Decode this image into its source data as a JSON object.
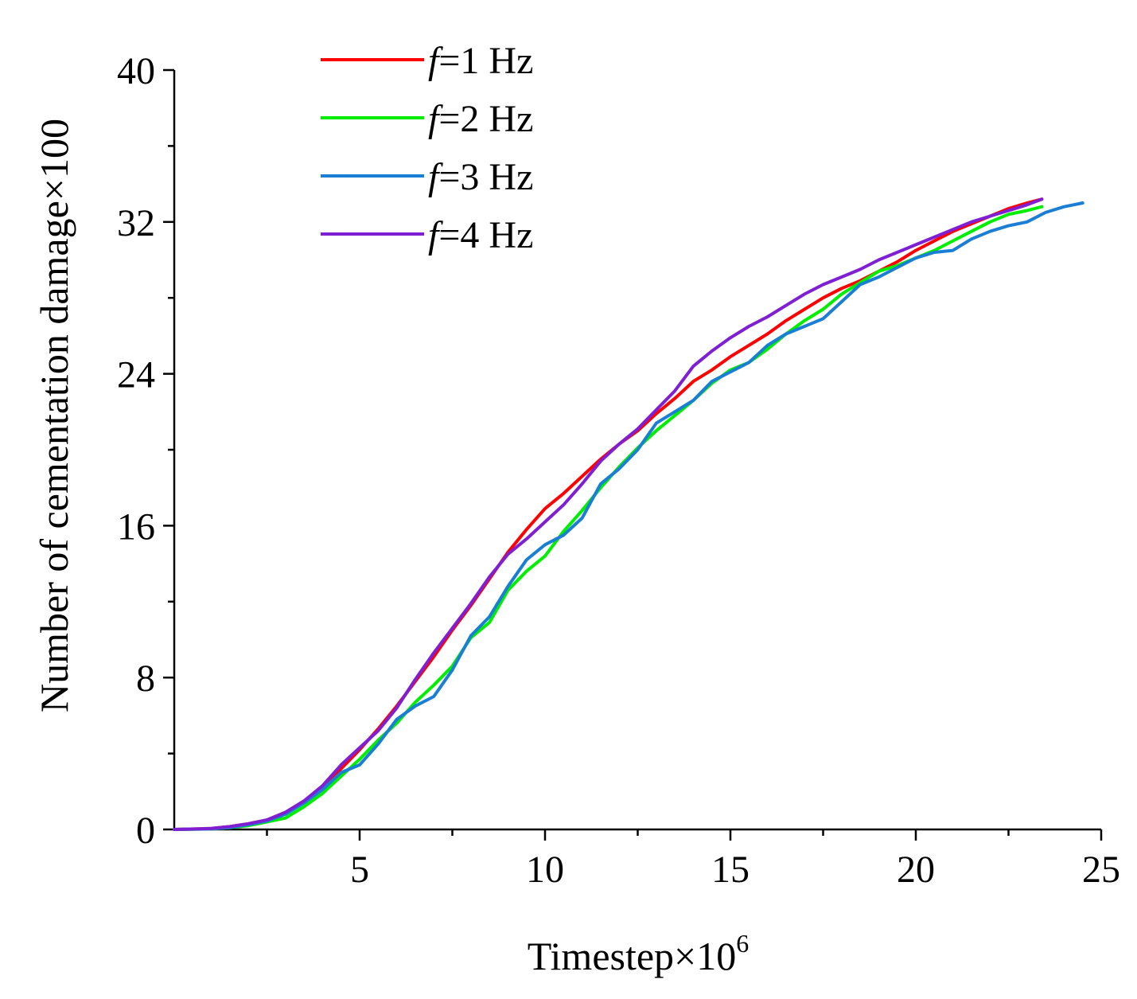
{
  "chart_data": {
    "type": "line",
    "title": "",
    "xlabel": "Timestep×10",
    "xlabel_sup": "6",
    "ylabel": "Number of cementation damage×100",
    "xlim": [
      0,
      25
    ],
    "ylim": [
      0,
      40
    ],
    "xticks": [
      5,
      10,
      15,
      20,
      25
    ],
    "yticks": [
      0,
      8,
      16,
      24,
      32,
      40
    ],
    "grid": false,
    "legend_position": "top-left",
    "series": [
      {
        "name": "f=1 Hz",
        "var": "f",
        "label": "=1 Hz",
        "color": "#ff0000",
        "x": [
          0,
          1,
          1.5,
          2,
          2.5,
          3,
          3.5,
          4,
          4.5,
          5,
          5.5,
          6,
          6.5,
          7,
          7.5,
          8,
          8.5,
          9,
          9.5,
          10,
          10.5,
          11,
          11.5,
          12,
          12.5,
          13,
          13.5,
          14,
          14.5,
          15,
          15.5,
          16,
          16.5,
          17,
          17.5,
          18,
          18.5,
          19,
          19.5,
          20,
          20.5,
          21,
          21.5,
          22,
          22.5,
          23,
          23.4
        ],
        "y": [
          0,
          0.05,
          0.15,
          0.3,
          0.5,
          0.9,
          1.5,
          2.2,
          3.2,
          4.2,
          5.3,
          6.5,
          7.8,
          9.1,
          10.5,
          11.8,
          13.2,
          14.6,
          15.8,
          16.9,
          17.7,
          18.6,
          19.5,
          20.3,
          21.0,
          21.9,
          22.7,
          23.6,
          24.2,
          24.9,
          25.5,
          26.1,
          26.8,
          27.4,
          28.0,
          28.5,
          28.9,
          29.4,
          29.9,
          30.5,
          31.0,
          31.5,
          31.9,
          32.3,
          32.7,
          33.0,
          33.2
        ]
      },
      {
        "name": "f=2 Hz",
        "var": "f",
        "label": "=2 Hz",
        "color": "#00ee00",
        "x": [
          0,
          1,
          1.5,
          2,
          2.5,
          3,
          3.5,
          4,
          4.5,
          5,
          5.5,
          6,
          6.5,
          7,
          7.5,
          8,
          8.5,
          9,
          9.5,
          10,
          10.5,
          11,
          11.5,
          12,
          12.5,
          13,
          13.5,
          14,
          14.5,
          15,
          15.5,
          16,
          16.5,
          17,
          17.5,
          18,
          18.5,
          19,
          19.5,
          20,
          20.5,
          21,
          21.5,
          22,
          22.5,
          23,
          23.4
        ],
        "y": [
          0,
          0.03,
          0.1,
          0.2,
          0.4,
          0.6,
          1.2,
          1.9,
          2.8,
          3.7,
          4.7,
          5.6,
          6.7,
          7.6,
          8.6,
          10.1,
          10.9,
          12.6,
          13.6,
          14.4,
          15.7,
          16.8,
          18.0,
          19.1,
          20.1,
          21.0,
          21.8,
          22.6,
          23.5,
          24.2,
          24.6,
          25.3,
          26.1,
          26.8,
          27.4,
          28.2,
          28.8,
          29.4,
          29.7,
          30.1,
          30.5,
          31.0,
          31.5,
          32.0,
          32.4,
          32.6,
          32.8
        ]
      },
      {
        "name": "f=3 Hz",
        "var": "f",
        "label": "=3 Hz",
        "color": "#1a7fd4",
        "x": [
          0,
          1,
          1.5,
          2,
          2.5,
          3,
          3.5,
          4,
          4.5,
          5,
          5.5,
          6,
          6.5,
          7,
          7.5,
          8,
          8.5,
          9,
          9.5,
          10,
          10.5,
          11,
          11.5,
          12,
          12.5,
          13,
          13.5,
          14,
          14.5,
          15,
          15.5,
          16,
          16.5,
          17,
          17.5,
          18,
          18.5,
          19,
          19.5,
          20,
          20.5,
          21,
          21.5,
          22,
          22.5,
          23,
          23.5,
          24,
          24.5
        ],
        "y": [
          0,
          0.03,
          0.1,
          0.25,
          0.45,
          0.8,
          1.4,
          2.1,
          3.0,
          3.4,
          4.5,
          5.8,
          6.5,
          7.0,
          8.4,
          10.2,
          11.2,
          12.8,
          14.2,
          15.0,
          15.5,
          16.4,
          18.2,
          19.0,
          20.0,
          21.4,
          22.0,
          22.6,
          23.6,
          24.1,
          24.6,
          25.5,
          26.1,
          26.5,
          26.9,
          27.8,
          28.7,
          29.1,
          29.6,
          30.1,
          30.4,
          30.5,
          31.1,
          31.5,
          31.8,
          32.0,
          32.5,
          32.8,
          33.0
        ]
      },
      {
        "name": "f=4 Hz",
        "var": "f",
        "label": "=4 Hz",
        "color": "#7f1fd4",
        "x": [
          0,
          1,
          1.5,
          2,
          2.5,
          3,
          3.5,
          4,
          4.5,
          5,
          5.5,
          6,
          6.5,
          7,
          7.5,
          8,
          8.5,
          9,
          9.5,
          10,
          10.5,
          11,
          11.5,
          12,
          12.5,
          13,
          13.5,
          14,
          14.5,
          15,
          15.5,
          16,
          16.5,
          17,
          17.5,
          18,
          18.5,
          19,
          19.5,
          20,
          20.5,
          21,
          21.5,
          22,
          22.5,
          23,
          23.4
        ],
        "y": [
          0,
          0.05,
          0.15,
          0.3,
          0.5,
          0.9,
          1.5,
          2.3,
          3.4,
          4.3,
          5.2,
          6.4,
          7.9,
          9.3,
          10.6,
          11.9,
          13.3,
          14.5,
          15.3,
          16.2,
          17.1,
          18.2,
          19.4,
          20.3,
          21.1,
          22.1,
          23.1,
          24.4,
          25.2,
          25.9,
          26.5,
          27.0,
          27.6,
          28.2,
          28.7,
          29.1,
          29.5,
          30.0,
          30.4,
          30.8,
          31.2,
          31.6,
          32.0,
          32.3,
          32.6,
          32.9,
          33.2
        ]
      }
    ]
  }
}
